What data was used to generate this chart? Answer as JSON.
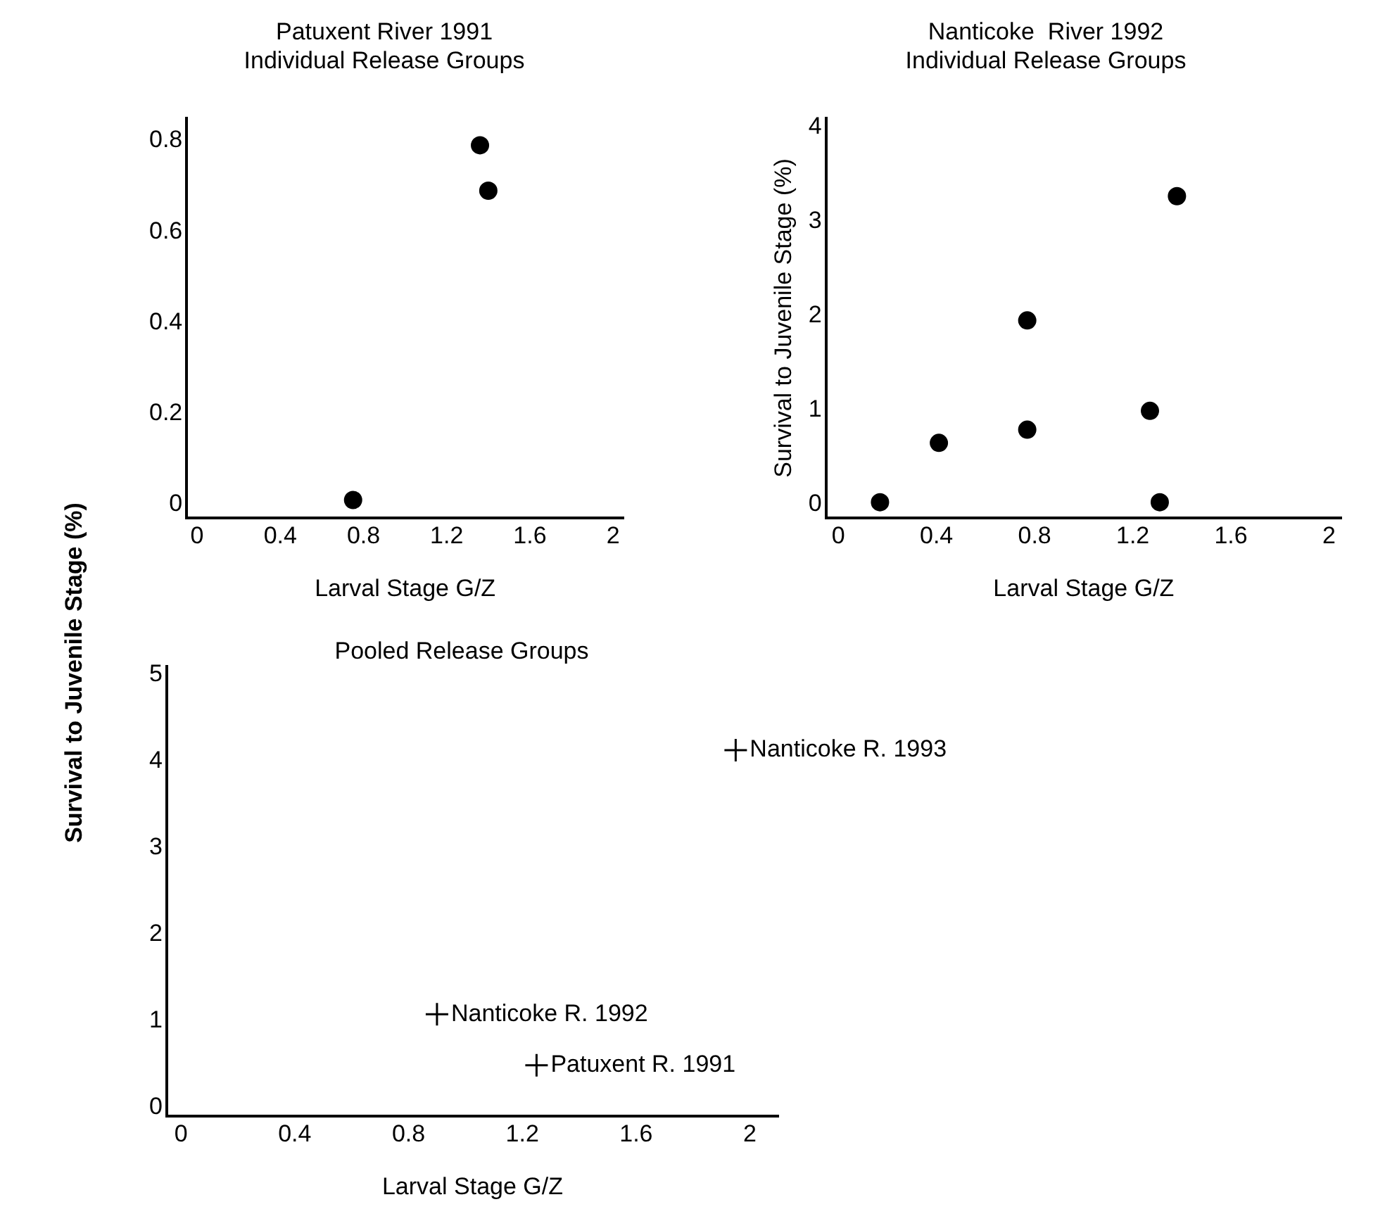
{
  "chart_data": [
    {
      "type": "scatter",
      "title": "Patuxent River 1991",
      "subtitle": "Individual Release Groups",
      "xlabel": "Larval Stage G/Z",
      "ylabel": "Survival to Juvenile Stage (%)",
      "marker": "circle",
      "x": [
        0.75,
        1.36,
        1.4
      ],
      "series": [
        {
          "color": "#000000",
          "values": [
            0.01,
            0.79,
            0.69
          ]
        }
      ],
      "xlim": [
        -0.05,
        2.05
      ],
      "ylim": [
        -0.03,
        0.85
      ],
      "xticks": [
        0,
        0.4,
        0.8,
        1.2,
        1.6,
        2
      ],
      "yticks": [
        0,
        0.2,
        0.4,
        0.6,
        0.8
      ],
      "grid": false,
      "legend": false
    },
    {
      "type": "scatter",
      "title": "Nanticoke  River 1992",
      "subtitle": "Individual Release Groups",
      "xlabel": "Larval Stage G/Z",
      "ylabel": "Survival to Juvenile Stage (%)",
      "marker": "circle",
      "x": [
        0.17,
        0.41,
        0.77,
        0.77,
        1.27,
        1.31,
        1.38
      ],
      "series": [
        {
          "color": "#000000",
          "values": [
            0.02,
            0.65,
            1.95,
            0.79,
            0.99,
            0.02,
            3.27
          ]
        }
      ],
      "xlim": [
        -0.05,
        2.05
      ],
      "ylim": [
        -0.15,
        4.1
      ],
      "xticks": [
        0,
        0.4,
        0.8,
        1.2,
        1.6,
        2
      ],
      "yticks": [
        0,
        1,
        2,
        3,
        4
      ],
      "grid": false,
      "legend": false
    },
    {
      "type": "scatter",
      "title": "Pooled Release Groups",
      "xlabel": "Larval Stage G/Z",
      "marker": "cross",
      "x": [
        1.95,
        0.9,
        1.25
      ],
      "series": [
        {
          "color": "#000000",
          "values": [
            4.13,
            1.08,
            0.49
          ]
        }
      ],
      "annotations": [
        {
          "text": "Nanticoke R. 1993",
          "x": 1.95,
          "y": 4.13
        },
        {
          "text": "Nanticoke R. 1992",
          "x": 0.9,
          "y": 1.08
        },
        {
          "text": "Patuxent R. 1991",
          "x": 1.25,
          "y": 0.49
        }
      ],
      "xlim": [
        -0.05,
        2.1
      ],
      "ylim": [
        -0.1,
        5.1
      ],
      "xticks": [
        0,
        0.4,
        0.8,
        1.2,
        1.6,
        2
      ],
      "yticks": [
        0,
        1,
        2,
        3,
        4,
        5
      ],
      "grid": false,
      "legend": false
    }
  ]
}
